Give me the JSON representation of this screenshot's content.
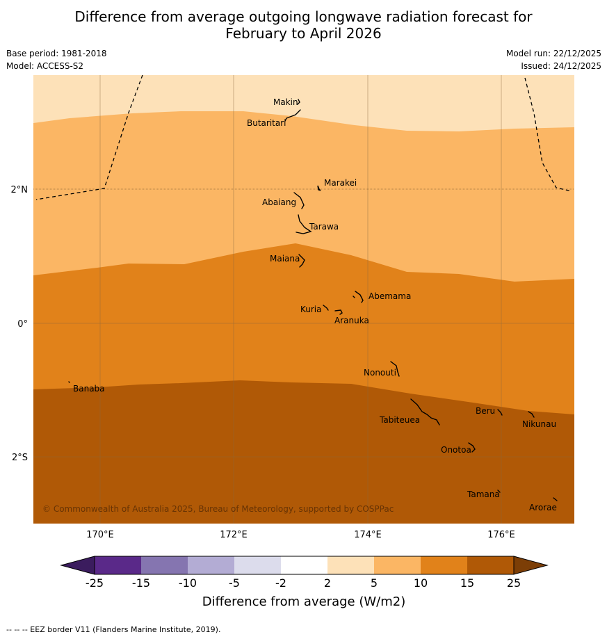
{
  "title": {
    "line1": "Difference from average outgoing longwave radiation forecast for",
    "line2": "February to April 2026"
  },
  "meta": {
    "base_period": "Base period: 1981-2018",
    "model": "Model: ACCESS-S2",
    "model_run": "Model run: 22/12/2025",
    "issued": "Issued: 24/12/2025"
  },
  "map": {
    "lat_labels": [
      "2°N",
      "0°",
      "2°S"
    ],
    "lon_labels": [
      "170°E",
      "172°E",
      "174°E",
      "176°E"
    ],
    "places": [
      "Makin",
      "Butaritari",
      "Marakei",
      "Abaiang",
      "Tarawa",
      "Maiana",
      "Abemama",
      "Kuria",
      "Aranuka",
      "Nonouti",
      "Banaba",
      "Tabiteuea",
      "Beru",
      "Nikunau",
      "Onotoa",
      "Tamana",
      "Arorae"
    ],
    "copyright": "© Commonwealth of Australia 2025, Bureau of Meteorology, supported by COSPPac"
  },
  "legend": {
    "ticks": [
      "-25",
      "-15",
      "-10",
      "-5",
      "-2",
      "2",
      "5",
      "10",
      "15",
      "25"
    ],
    "colors": [
      "#3b1c5e",
      "#5a2989",
      "#8575b0",
      "#b3acd4",
      "#dcdcec",
      "#ffffff",
      "#fde1b8",
      "#fbb664",
      "#e1821a",
      "#b05906",
      "#7c3e06"
    ],
    "label": "Difference from average (W/m2)"
  },
  "footer": "-- -- -- EEZ border V11 (Flanders Marine Institute, 2019)."
}
